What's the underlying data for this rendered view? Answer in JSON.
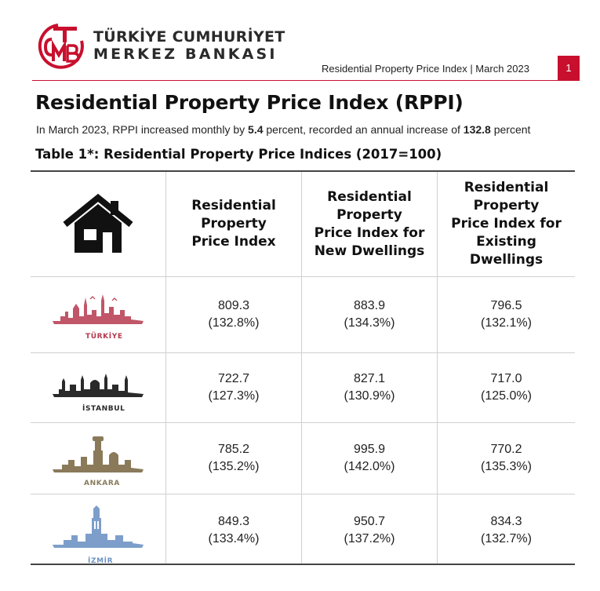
{
  "header": {
    "logo_letters": "TCMB",
    "bank_name_line1": "TÜRKİYE CUMHURİYET",
    "bank_name_line2": "MERKEZ BANKASI",
    "doc_ref": "Residential Property Price Index | March 2023",
    "page_number": "1"
  },
  "title": "Residential Property Price Index (RPPI)",
  "subtitle": {
    "part1": "In March 2023, RPPI increased monthly by ",
    "monthly": "5.4",
    "part2": " percent, recorded an annual increase of ",
    "annual": "132.8",
    "part3": " percent"
  },
  "table_title": "Table 1*: Residential Property Price Indices (2017=100)",
  "columns": [
    {
      "line1": "Residential",
      "line2": "Property",
      "line3": "Price Index",
      "line4": ""
    },
    {
      "line1": "Residential",
      "line2": "Property",
      "line3": "Price Index for",
      "line4": "New Dwellings"
    },
    {
      "line1": "Residential",
      "line2": "Property",
      "line3": "Price Index for",
      "line4": "Existing Dwellings"
    }
  ],
  "rows": [
    {
      "city": "TÜRKİYE",
      "color": "#b5384e",
      "values": [
        {
          "v": "809.3",
          "p": "(132.8%)"
        },
        {
          "v": "883.9",
          "p": "(134.3%)"
        },
        {
          "v": "796.5",
          "p": "(132.1%)"
        }
      ]
    },
    {
      "city": "İSTANBUL",
      "color": "#2a2a2a",
      "values": [
        {
          "v": "722.7",
          "p": "(127.3%)"
        },
        {
          "v": "827.1",
          "p": "(130.9%)"
        },
        {
          "v": "717.0",
          "p": "(125.0%)"
        }
      ]
    },
    {
      "city": "ANKARA",
      "color": "#8a7a5a",
      "values": [
        {
          "v": "785.2",
          "p": "(135.2%)"
        },
        {
          "v": "995.9",
          "p": "(142.0%)"
        },
        {
          "v": "770.2",
          "p": "(135.3%)"
        }
      ]
    },
    {
      "city": "İZMİR",
      "color": "#6f93c4",
      "values": [
        {
          "v": "849.3",
          "p": "(133.4%)"
        },
        {
          "v": "950.7",
          "p": "(137.2%)"
        },
        {
          "v": "834.3",
          "p": "(132.7%)"
        }
      ]
    }
  ],
  "colors": {
    "brand_red": "#c8102e"
  }
}
